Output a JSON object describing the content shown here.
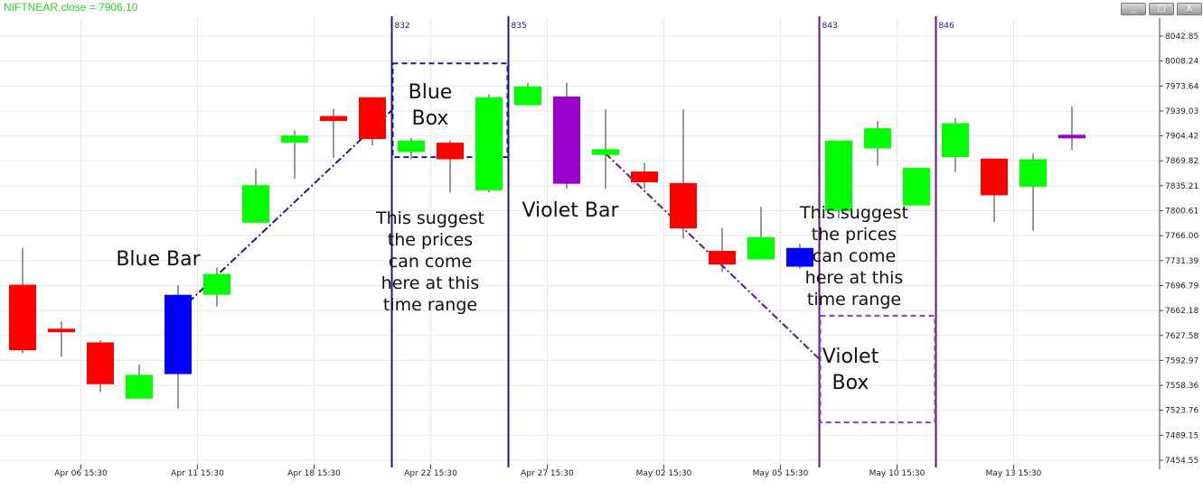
{
  "window": {
    "title": "NIFTNEAR.close = 7906.10",
    "buttons": {
      "minimize": "_",
      "maximize": "□",
      "close": "X"
    }
  },
  "colors": {
    "up": "#00ff00",
    "down": "#ff0000",
    "blue": "#0000ff",
    "violet": "#9900cc",
    "blue_line": "#1a1a80",
    "violet_line": "#5a1a7a"
  },
  "chart_data": {
    "type": "candlestick",
    "title": "NIFTNEAR.close = 7906.10",
    "y_ticks": [
      "8042.85",
      "8008.24",
      "7973.64",
      "7939.03",
      "7904.42",
      "7869.82",
      "7835.21",
      "7800.61",
      "7766.00",
      "7731.39",
      "7696.79",
      "7662.18",
      "7627.58",
      "7592.97",
      "7558.36",
      "7523.76",
      "7489.15",
      "7454.55"
    ],
    "ylim": [
      7454.55,
      8042.85
    ],
    "x_ticks": [
      {
        "bar": 1.5,
        "label": "Apr 06 15:30"
      },
      {
        "bar": 4.5,
        "label": "Apr 11 15:30"
      },
      {
        "bar": 7.5,
        "label": "Apr 18 15:30"
      },
      {
        "bar": 10.5,
        "label": "Apr 22 15:30"
      },
      {
        "bar": 13.5,
        "label": "Apr 27 15:30"
      },
      {
        "bar": 16.5,
        "label": "May 02 15:30"
      },
      {
        "bar": 19.5,
        "label": "May 05 15:30"
      },
      {
        "bar": 22.5,
        "label": "May 10 15:30"
      },
      {
        "bar": 25.5,
        "label": "May 13 15:30"
      }
    ],
    "candles": [
      {
        "o": 7698,
        "h": 7749,
        "l": 7603,
        "c": 7607,
        "color": "down"
      },
      {
        "o": 7637,
        "h": 7647,
        "l": 7598,
        "c": 7633,
        "color": "down"
      },
      {
        "o": 7618,
        "h": 7621,
        "l": 7549,
        "c": 7560,
        "color": "down"
      },
      {
        "o": 7540,
        "h": 7587,
        "l": 7540,
        "c": 7573,
        "color": "up"
      },
      {
        "o": 7574,
        "h": 7697,
        "l": 7526,
        "c": 7684,
        "color": "blue"
      },
      {
        "o": 7684,
        "h": 7722,
        "l": 7668,
        "c": 7713,
        "color": "up"
      },
      {
        "o": 7784,
        "h": 7859,
        "l": 7784,
        "c": 7836,
        "color": "up"
      },
      {
        "o": 7895,
        "h": 7912,
        "l": 7845,
        "c": 7905,
        "color": "up"
      },
      {
        "o": 7932,
        "h": 7942,
        "l": 7874,
        "c": 7925,
        "color": "down"
      },
      {
        "o": 7958,
        "h": 7958,
        "l": 7891,
        "c": 7900,
        "color": "down"
      },
      {
        "o": 7882,
        "h": 7902,
        "l": 7872,
        "c": 7898,
        "color": "up"
      },
      {
        "o": 7895,
        "h": 7898,
        "l": 7826,
        "c": 7872,
        "color": "down"
      },
      {
        "o": 7829,
        "h": 7962,
        "l": 7826,
        "c": 7958,
        "color": "up"
      },
      {
        "o": 7947,
        "h": 7978,
        "l": 7947,
        "c": 7973,
        "color": "up"
      },
      {
        "o": 7959,
        "h": 7978,
        "l": 7831,
        "c": 7838,
        "color": "violet"
      },
      {
        "o": 7878,
        "h": 7941,
        "l": 7831,
        "c": 7886,
        "color": "up"
      },
      {
        "o": 7855,
        "h": 7867,
        "l": 7831,
        "c": 7840,
        "color": "down"
      },
      {
        "o": 7839,
        "h": 7941,
        "l": 7762,
        "c": 7776,
        "color": "down"
      },
      {
        "o": 7745,
        "h": 7777,
        "l": 7716,
        "c": 7726,
        "color": "down"
      },
      {
        "o": 7733,
        "h": 7806,
        "l": 7733,
        "c": 7764,
        "color": "up"
      },
      {
        "o": 7723,
        "h": 7755,
        "l": 7720,
        "c": 7749,
        "color": "blue"
      },
      {
        "o": 7800,
        "h": 7898,
        "l": 7790,
        "c": 7898,
        "color": "up"
      },
      {
        "o": 7887,
        "h": 7925,
        "l": 7863,
        "c": 7915,
        "color": "up"
      },
      {
        "o": 7808,
        "h": 7860,
        "l": 7808,
        "c": 7860,
        "color": "up"
      },
      {
        "o": 7875,
        "h": 7929,
        "l": 7855,
        "c": 7922,
        "color": "up"
      },
      {
        "o": 7873,
        "h": 7873,
        "l": 7785,
        "c": 7822,
        "color": "down"
      },
      {
        "o": 7834,
        "h": 7880,
        "l": 7773,
        "c": 7872,
        "color": "up"
      },
      {
        "o": 7902,
        "h": 7945,
        "l": 7885,
        "c": 7906,
        "color": "violet"
      }
    ],
    "vertical_lines": [
      {
        "bar": 9.5,
        "label": "832",
        "color": "blue_line"
      },
      {
        "bar": 12.5,
        "label": "835",
        "color": "blue_line"
      },
      {
        "bar": 20.5,
        "label": "843",
        "color": "violet_line"
      },
      {
        "bar": 23.5,
        "label": "846",
        "color": "violet_line"
      }
    ],
    "trend_lines": [
      {
        "from": {
          "bar": 4,
          "value": 7660
        },
        "to": {
          "bar": 9.5,
          "value": 7940
        },
        "color": "blue_line"
      },
      {
        "from": {
          "bar": 15,
          "value": 7880
        },
        "to": {
          "bar": 20.5,
          "value": 7595
        },
        "color": "violet_line"
      }
    ],
    "boxes": [
      {
        "from_bar": 9.5,
        "to_bar": 12.5,
        "top": 8005,
        "bottom": 7875,
        "color": "blue",
        "label_lines": [
          "Blue",
          "Box"
        ]
      },
      {
        "from_bar": 20.5,
        "to_bar": 23.5,
        "top": 7655,
        "bottom": 7507,
        "color": "violet",
        "label_lines": [
          "Violet",
          "Box"
        ]
      }
    ],
    "annotations": [
      {
        "id": "blue-bar-label",
        "text": "Blue Bar"
      },
      {
        "id": "violet-bar-label",
        "text": "Violet Bar"
      },
      {
        "id": "suggest-left",
        "lines": [
          "This suggest",
          "the prices",
          "can come",
          "here at this",
          "time range"
        ]
      },
      {
        "id": "suggest-right",
        "lines": [
          "This suggest",
          "the prices",
          "can come",
          "here at this",
          "time range"
        ]
      }
    ]
  }
}
